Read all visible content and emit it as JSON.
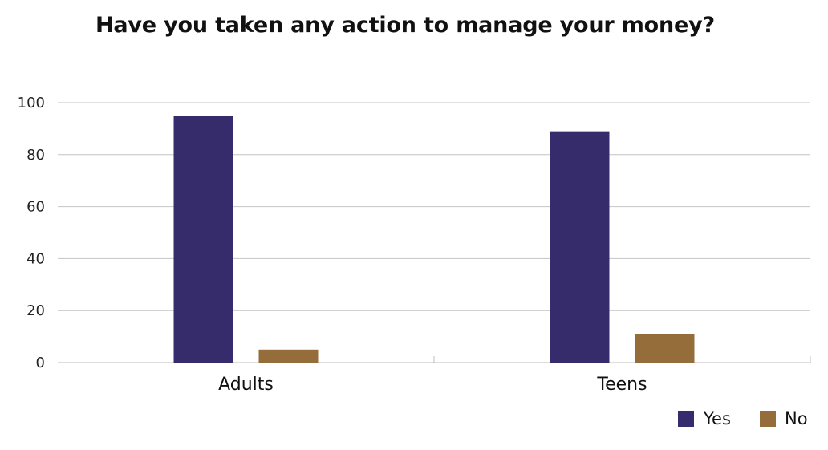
{
  "chart_data": {
    "type": "bar",
    "title": "Have you taken any action to manage your money?",
    "categories": [
      "Adults",
      "Teens"
    ],
    "series": [
      {
        "name": "Yes",
        "values": [
          95,
          89
        ],
        "color": "#362c6c"
      },
      {
        "name": "No",
        "values": [
          5,
          11
        ],
        "color": "#956d3a"
      }
    ],
    "ylim": [
      0,
      100
    ],
    "yticks": [
      0,
      20,
      40,
      60,
      80,
      100
    ],
    "grid": true,
    "legend": "bottom-right"
  }
}
